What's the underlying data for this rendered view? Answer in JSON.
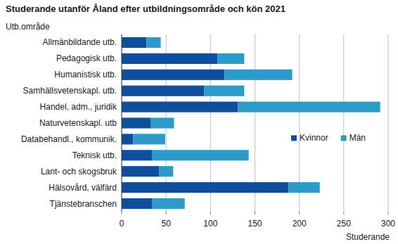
{
  "chart_data": {
    "type": "bar",
    "orientation": "horizontal",
    "stacked": true,
    "title": "Studerande utanför Åland efter utbildningsområde och kön 2021",
    "y_label": "Utb.område",
    "x_label": "Studerande",
    "categories": [
      "Allmänbildande utb.",
      "Pedagogisk utb.",
      "Humanistisk utb.",
      "Samhällsvetenskapl. utb.",
      "Handel, adm., juridik",
      "Naturvetenskapl. utb",
      "Databehandl., kommunik.",
      "Teknisk utb.",
      "Lant- och skogsbruk",
      "Hälsovård, välfärd",
      "Tjänstebranschen"
    ],
    "series": [
      {
        "name": "Kvinnor",
        "color": "#0f4e9b",
        "values": [
          28,
          108,
          116,
          93,
          131,
          33,
          13,
          34,
          42,
          188,
          34
        ]
      },
      {
        "name": "Män",
        "color": "#2c9bc8",
        "values": [
          16,
          30,
          76,
          45,
          160,
          26,
          36,
          109,
          16,
          35,
          37
        ]
      }
    ],
    "xlim": [
      0,
      300
    ],
    "xticks": [
      0,
      50,
      100,
      150,
      200,
      250,
      300
    ],
    "grid": true,
    "legend": "right"
  }
}
